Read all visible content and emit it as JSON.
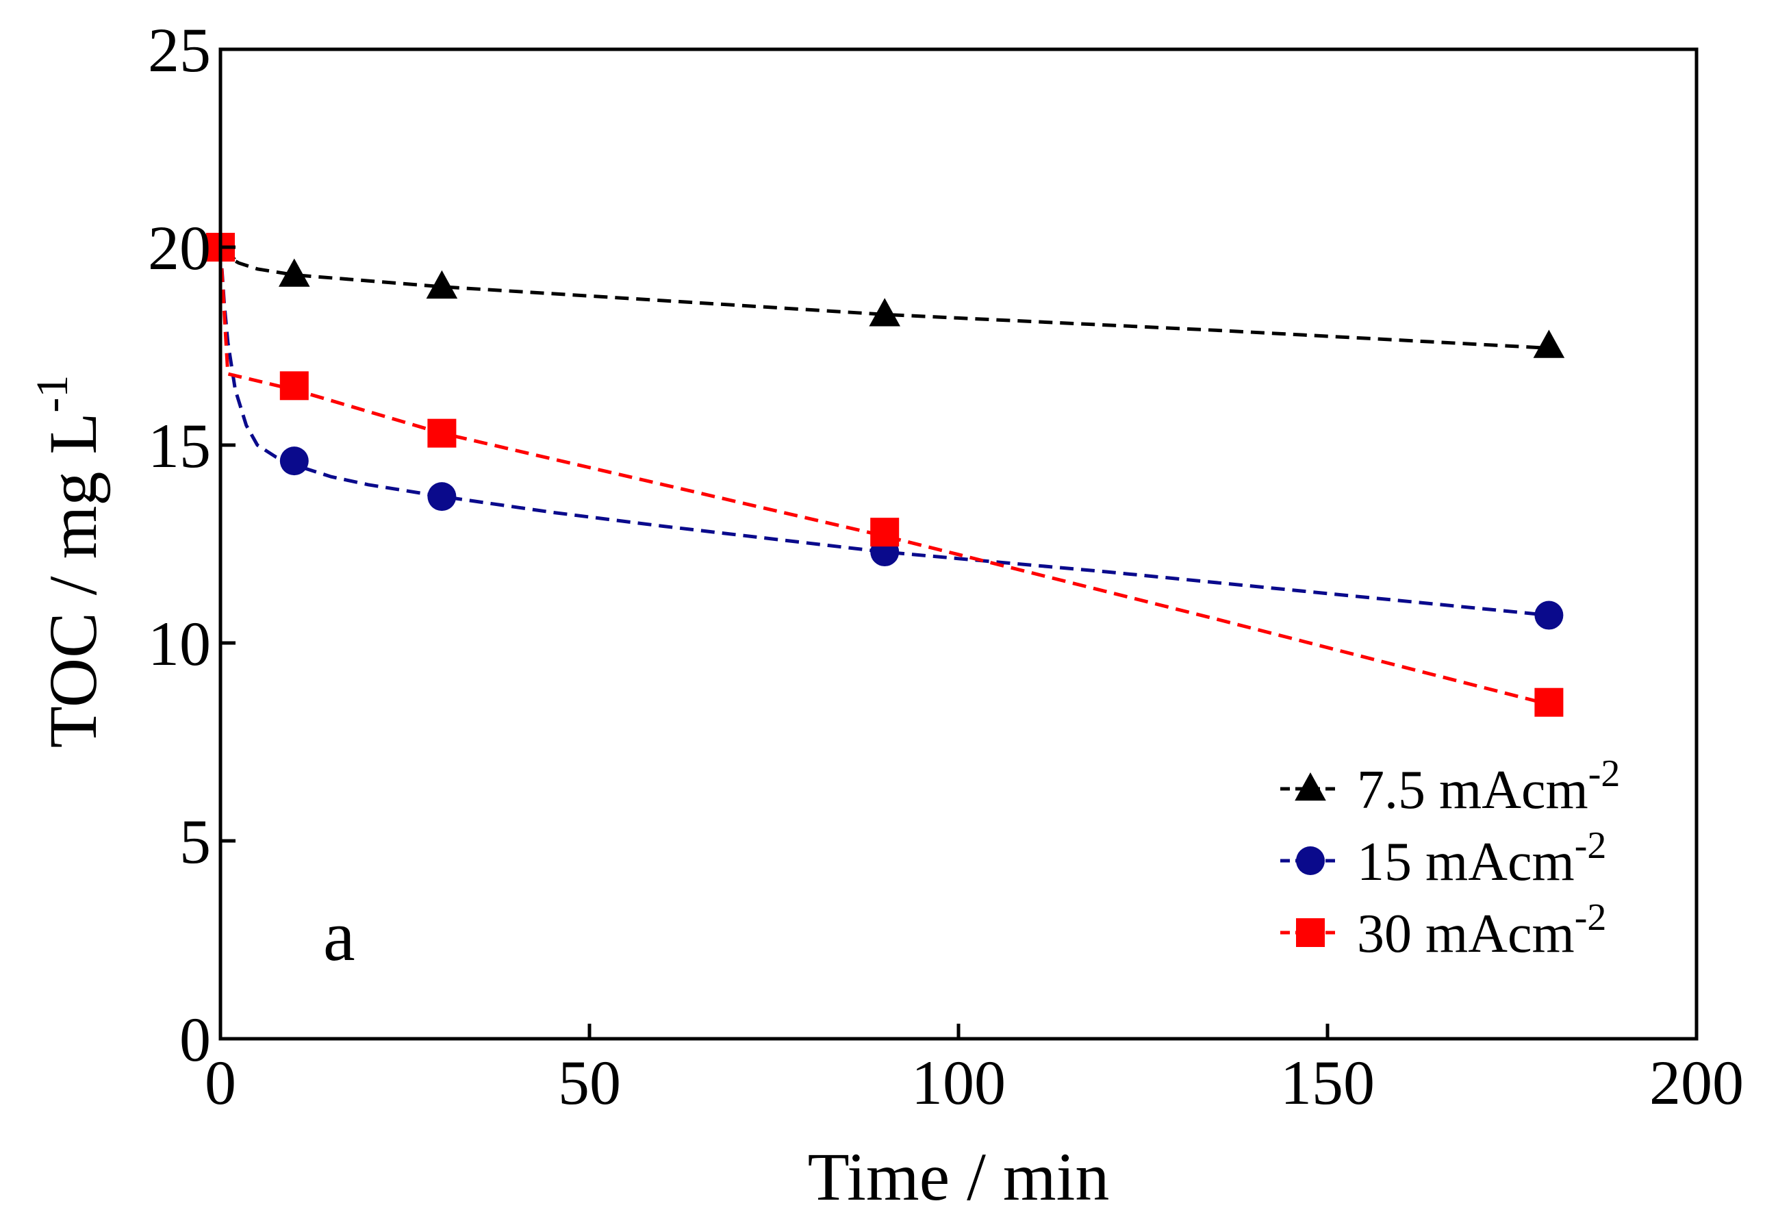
{
  "chart_data": {
    "type": "line",
    "title": "",
    "xlabel": "Time / min",
    "ylabel_main": "TOC / mg L",
    "ylabel_sup": "-1",
    "xlim": [
      0,
      200
    ],
    "ylim": [
      0,
      25
    ],
    "xticks": [
      0,
      50,
      100,
      150,
      200
    ],
    "yticks": [
      0,
      5,
      10,
      15,
      20,
      25
    ],
    "x": [
      0,
      10,
      30,
      90,
      180
    ],
    "panel_label": "a",
    "legend_position": "bottom-right",
    "series": [
      {
        "name": "7.5 mAcm",
        "sup": "-2",
        "marker": "triangle",
        "color": "#000000",
        "values": [
          20.0,
          19.3,
          19.0,
          18.3,
          17.5
        ],
        "curve": [
          [
            0,
            20.0
          ],
          [
            1,
            19.75
          ],
          [
            2.5,
            19.6
          ],
          [
            5,
            19.45
          ],
          [
            10,
            19.3
          ],
          [
            20,
            19.15
          ],
          [
            30,
            19.0
          ],
          [
            60,
            18.65
          ],
          [
            90,
            18.3
          ],
          [
            135,
            17.9
          ],
          [
            180,
            17.45
          ]
        ]
      },
      {
        "name": "15 mAcm",
        "sup": "-2",
        "marker": "circle",
        "color": "#0a0a8c",
        "values": [
          20.0,
          14.6,
          13.7,
          12.3,
          10.7
        ],
        "curve": [
          [
            0,
            20.0
          ],
          [
            0.5,
            18.6
          ],
          [
            1,
            17.6
          ],
          [
            2,
            16.4
          ],
          [
            3.5,
            15.5
          ],
          [
            5,
            15.0
          ],
          [
            7.5,
            14.7
          ],
          [
            10,
            14.5
          ],
          [
            15,
            14.2
          ],
          [
            20,
            14.0
          ],
          [
            30,
            13.7
          ],
          [
            45,
            13.3
          ],
          [
            60,
            12.95
          ],
          [
            90,
            12.3
          ],
          [
            120,
            11.8
          ],
          [
            150,
            11.25
          ],
          [
            180,
            10.7
          ]
        ]
      },
      {
        "name": "30 mAcm",
        "sup": "-2",
        "marker": "square",
        "color": "#ff0000",
        "values": [
          20.0,
          16.5,
          15.3,
          12.8,
          8.5
        ],
        "curve": [
          [
            0,
            20.0
          ],
          [
            1,
            16.8
          ],
          [
            10,
            16.4
          ],
          [
            30,
            15.3
          ],
          [
            60,
            14.0
          ],
          [
            90,
            12.7
          ],
          [
            135,
            10.6
          ],
          [
            180,
            8.45
          ]
        ]
      }
    ]
  }
}
